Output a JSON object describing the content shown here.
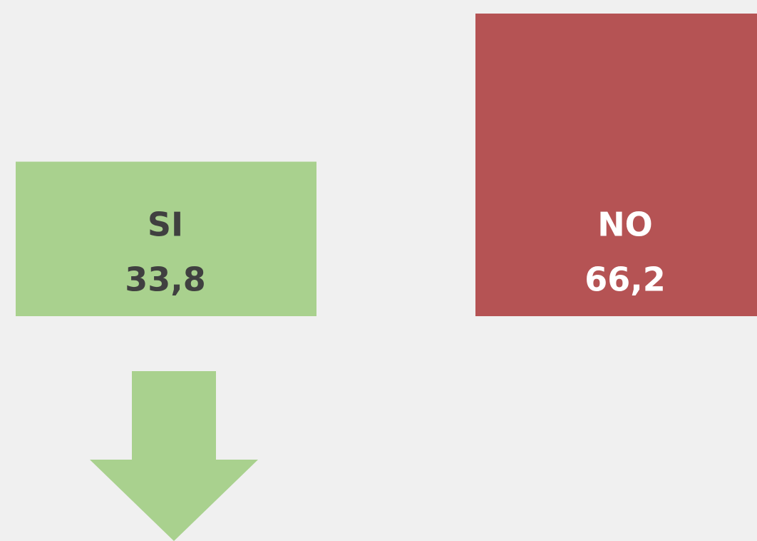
{
  "chart_data": {
    "type": "bar",
    "categories": [
      "SI",
      "NO"
    ],
    "values": [
      33.8,
      66.2
    ],
    "value_labels": [
      "33,8",
      "66,2"
    ],
    "colors": [
      "#a9d18e",
      "#b55354"
    ],
    "label_colors": [
      "#404040",
      "#ffffff"
    ]
  }
}
